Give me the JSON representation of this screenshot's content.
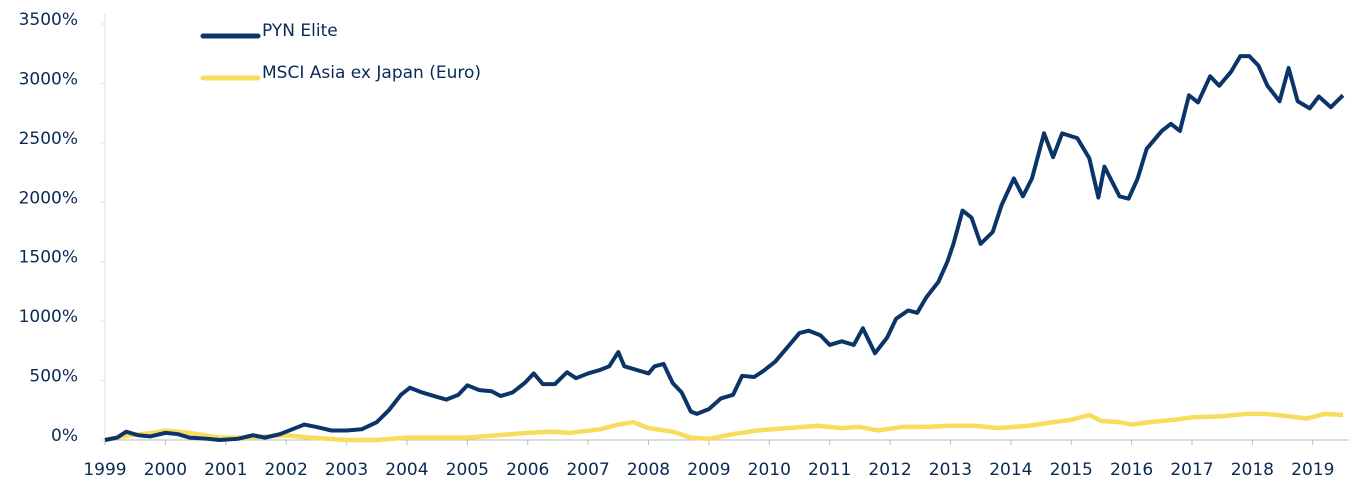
{
  "chart_data": {
    "type": "line",
    "xlim": [
      1999,
      2019.6
    ],
    "xticks": [
      1999,
      2000,
      2001,
      2002,
      2003,
      2004,
      2005,
      2006,
      2007,
      2008,
      2009,
      2010,
      2011,
      2012,
      2013,
      2014,
      2015,
      2016,
      2017,
      2018,
      2019
    ],
    "ylim": [
      0,
      3500
    ],
    "yticks": [
      {
        "value": 0,
        "label": "0%"
      },
      {
        "value": 500,
        "label": "500%"
      },
      {
        "value": 1000,
        "label": "1000%"
      },
      {
        "value": 1500,
        "label": "1500%"
      },
      {
        "value": 2000,
        "label": "2000%"
      },
      {
        "value": 2500,
        "label": "2500%"
      },
      {
        "value": 3000,
        "label": "3000%"
      },
      {
        "value": 3500,
        "label": "3500%"
      }
    ],
    "legend": "upper left",
    "series": [
      {
        "name": "PYN Elite",
        "color": "#0b3468",
        "x": [
          1999.0,
          1999.2,
          1999.35,
          1999.55,
          1999.75,
          2000.0,
          2000.2,
          2000.4,
          2000.7,
          2000.9,
          2001.2,
          2001.45,
          2001.65,
          2001.9,
          2002.1,
          2002.3,
          2002.5,
          2002.75,
          2003.0,
          2003.25,
          2003.5,
          2003.7,
          2003.9,
          2004.05,
          2004.25,
          2004.45,
          2004.65,
          2004.85,
          2005.0,
          2005.2,
          2005.4,
          2005.55,
          2005.75,
          2005.95,
          2006.1,
          2006.25,
          2006.45,
          2006.65,
          2006.8,
          2007.0,
          2007.2,
          2007.35,
          2007.5,
          2007.6,
          2007.8,
          2008.0,
          2008.1,
          2008.25,
          2008.4,
          2008.55,
          2008.7,
          2008.8,
          2009.0,
          2009.2,
          2009.4,
          2009.55,
          2009.75,
          2009.9,
          2010.1,
          2010.3,
          2010.5,
          2010.65,
          2010.85,
          2011.0,
          2011.2,
          2011.4,
          2011.55,
          2011.75,
          2011.95,
          2012.1,
          2012.3,
          2012.45,
          2012.6,
          2012.8,
          2012.95,
          2013.05,
          2013.2,
          2013.35,
          2013.5,
          2013.7,
          2013.85,
          2014.05,
          2014.2,
          2014.35,
          2014.55,
          2014.7,
          2014.85,
          2015.1,
          2015.3,
          2015.45,
          2015.55,
          2015.8,
          2015.95,
          2016.1,
          2016.25,
          2016.5,
          2016.65,
          2016.8,
          2016.95,
          2017.1,
          2017.3,
          2017.45,
          2017.65,
          2017.8,
          2017.95,
          2018.1,
          2018.25,
          2018.45,
          2018.6,
          2018.75,
          2018.95,
          2019.1,
          2019.3,
          2019.5
        ],
        "values": [
          0,
          20,
          70,
          40,
          30,
          60,
          50,
          20,
          10,
          0,
          10,
          40,
          20,
          50,
          90,
          130,
          110,
          80,
          80,
          90,
          150,
          250,
          380,
          440,
          400,
          370,
          340,
          380,
          460,
          420,
          410,
          370,
          400,
          480,
          560,
          470,
          470,
          570,
          520,
          560,
          590,
          620,
          740,
          620,
          590,
          560,
          620,
          640,
          480,
          400,
          240,
          220,
          260,
          350,
          380,
          540,
          530,
          580,
          660,
          780,
          900,
          920,
          880,
          800,
          830,
          800,
          940,
          730,
          860,
          1020,
          1090,
          1070,
          1200,
          1330,
          1500,
          1650,
          1930,
          1870,
          1650,
          1750,
          1980,
          2200,
          2050,
          2200,
          2580,
          2380,
          2580,
          2540,
          2370,
          2040,
          2300,
          2050,
          2030,
          2200,
          2450,
          2600,
          2660,
          2600,
          2900,
          2840,
          3060,
          2980,
          3100,
          3230,
          3230,
          3150,
          2980,
          2850,
          3130,
          2850,
          2790,
          2890,
          2800,
          2900
        ]
      },
      {
        "name": "MSCI Asia ex Japan (Euro)",
        "color": "#f8dc5e",
        "x": [
          1999.0,
          1999.4,
          1999.8,
          2000.0,
          2000.4,
          2000.9,
          2001.4,
          2002.0,
          2002.4,
          2003.0,
          2003.5,
          2004.0,
          2004.5,
          2005.0,
          2005.5,
          2006.0,
          2006.4,
          2006.7,
          2007.2,
          2007.5,
          2007.75,
          2008.0,
          2008.4,
          2008.7,
          2009.0,
          2009.4,
          2009.8,
          2010.3,
          2010.8,
          2011.2,
          2011.5,
          2011.8,
          2012.2,
          2012.6,
          2013.0,
          2013.4,
          2013.8,
          2014.3,
          2014.7,
          2015.0,
          2015.3,
          2015.5,
          2015.8,
          2016.0,
          2016.3,
          2016.7,
          2017.0,
          2017.5,
          2017.9,
          2018.2,
          2018.6,
          2018.9,
          2019.2,
          2019.5
        ],
        "values": [
          0,
          40,
          60,
          80,
          60,
          20,
          20,
          40,
          20,
          0,
          0,
          20,
          20,
          20,
          40,
          60,
          70,
          60,
          90,
          130,
          150,
          100,
          70,
          20,
          10,
          50,
          80,
          100,
          120,
          100,
          110,
          80,
          110,
          110,
          120,
          120,
          100,
          120,
          150,
          170,
          210,
          160,
          150,
          130,
          150,
          170,
          190,
          200,
          220,
          220,
          200,
          180,
          220,
          210
        ]
      }
    ]
  }
}
